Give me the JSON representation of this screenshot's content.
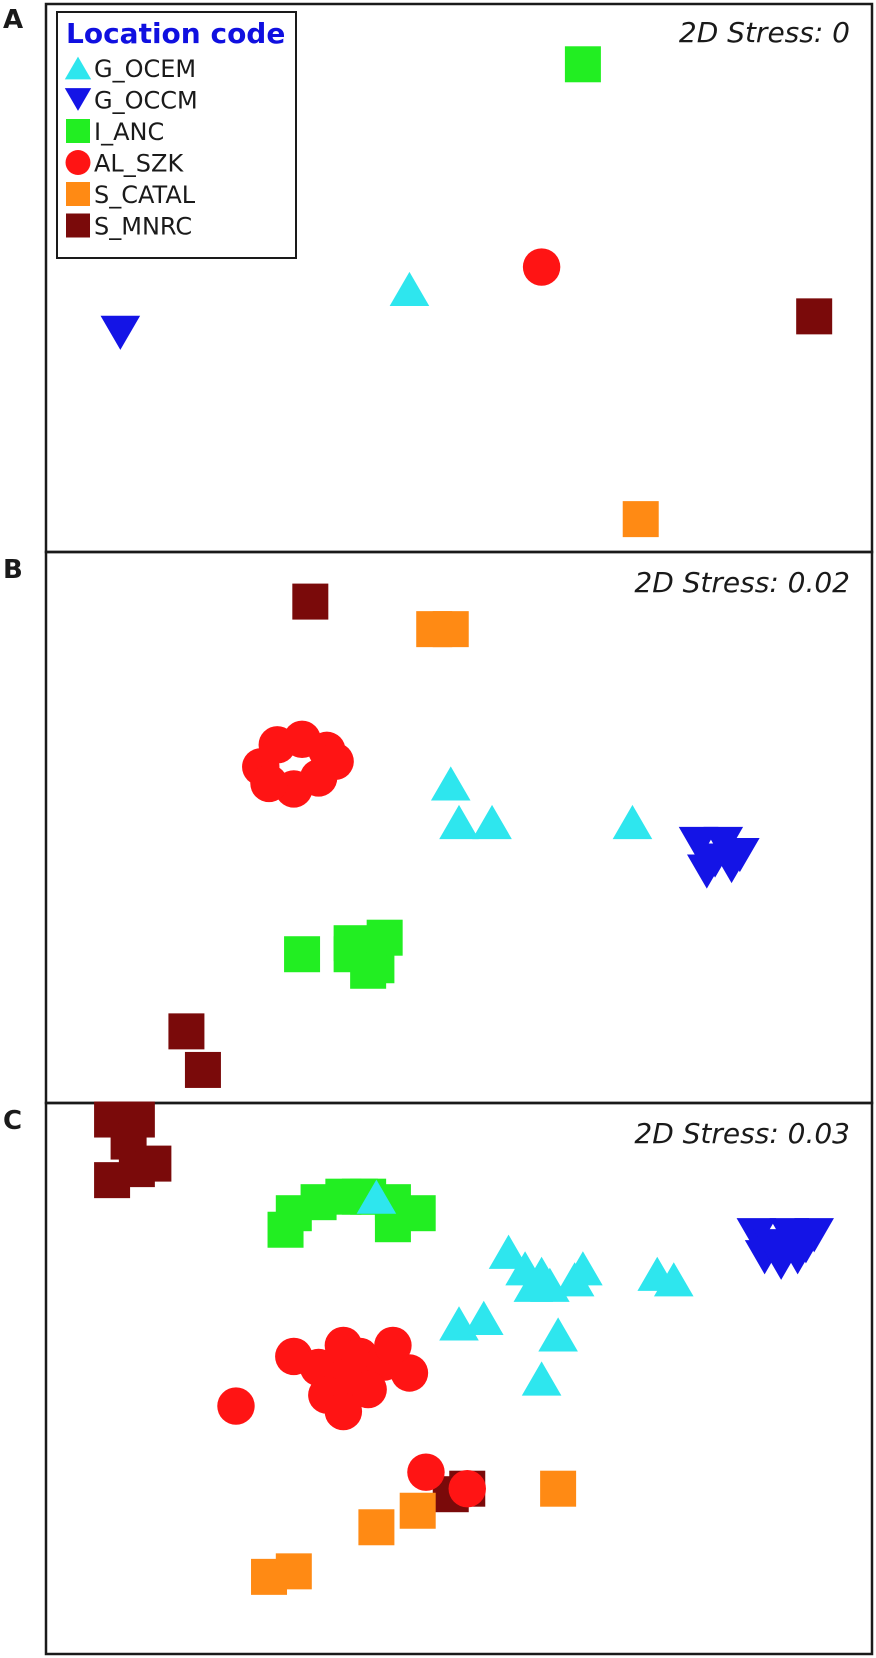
{
  "chart_data": {
    "type": "scatter",
    "legend": {
      "title": "Location code",
      "placement": "top-left",
      "entries": [
        {
          "label": "G_OCEM",
          "shape": "triangle-up",
          "color": "#2ee6ee"
        },
        {
          "label": "G_OCCM",
          "shape": "triangle-down",
          "color": "#1414e6"
        },
        {
          "label": "I_ANC",
          "shape": "square",
          "color": "#22ee22"
        },
        {
          "label": "AL_SZK",
          "shape": "circle",
          "color": "#ff1414"
        },
        {
          "label": "S_CATAL",
          "shape": "square",
          "color": "#ff8a14"
        },
        {
          "label": "S_MNRC",
          "shape": "square",
          "color": "#7a0a0a"
        }
      ]
    },
    "panels": [
      {
        "letter": "A",
        "stress": "2D Stress: 0",
        "points": {
          "G_OCEM": [
            [
              0.44,
              0.48
            ]
          ],
          "G_OCCM": [
            [
              0.09,
              0.4
            ]
          ],
          "I_ANC": [
            [
              0.65,
              0.89
            ]
          ],
          "AL_SZK": [
            [
              0.6,
              0.52
            ]
          ],
          "S_CATAL": [
            [
              0.72,
              0.06
            ]
          ],
          "S_MNRC": [
            [
              0.93,
              0.43
            ]
          ]
        }
      },
      {
        "letter": "B",
        "stress": "2D Stress: 0.02",
        "points": {
          "G_OCEM": [
            [
              0.49,
              0.58
            ],
            [
              0.5,
              0.51
            ],
            [
              0.54,
              0.51
            ],
            [
              0.71,
              0.51
            ]
          ],
          "G_OCCM": [
            [
              0.79,
              0.47
            ],
            [
              0.82,
              0.47
            ],
            [
              0.84,
              0.45
            ],
            [
              0.81,
              0.44
            ],
            [
              0.83,
              0.43
            ],
            [
              0.8,
              0.42
            ]
          ],
          "I_ANC": [
            [
              0.31,
              0.27
            ],
            [
              0.37,
              0.27
            ],
            [
              0.4,
              0.25
            ],
            [
              0.37,
              0.29
            ],
            [
              0.41,
              0.3
            ],
            [
              0.39,
              0.24
            ]
          ],
          "AL_SZK": [
            [
              0.26,
              0.61
            ],
            [
              0.28,
              0.65
            ],
            [
              0.31,
              0.66
            ],
            [
              0.34,
              0.64
            ],
            [
              0.35,
              0.62
            ],
            [
              0.33,
              0.59
            ],
            [
              0.3,
              0.57
            ],
            [
              0.27,
              0.58
            ]
          ],
          "S_CATAL": [
            [
              0.47,
              0.86
            ],
            [
              0.49,
              0.86
            ]
          ],
          "S_MNRC": [
            [
              0.32,
              0.91
            ],
            [
              0.17,
              0.13
            ],
            [
              0.19,
              0.06
            ]
          ]
        }
      },
      {
        "letter": "C",
        "stress": "2D Stress: 0.03",
        "points": {
          "G_OCEM": [
            [
              0.4,
              0.83
            ],
            [
              0.56,
              0.73
            ],
            [
              0.58,
              0.7
            ],
            [
              0.6,
              0.69
            ],
            [
              0.65,
              0.7
            ],
            [
              0.64,
              0.68
            ],
            [
              0.74,
              0.69
            ],
            [
              0.76,
              0.68
            ],
            [
              0.5,
              0.6
            ],
            [
              0.53,
              0.61
            ],
            [
              0.62,
              0.58
            ],
            [
              0.6,
              0.5
            ],
            [
              0.59,
              0.67
            ],
            [
              0.61,
              0.67
            ]
          ],
          "G_OCCM": [
            [
              0.86,
              0.76
            ],
            [
              0.88,
              0.74
            ],
            [
              0.9,
              0.76
            ],
            [
              0.92,
              0.74
            ],
            [
              0.87,
              0.72
            ],
            [
              0.89,
              0.71
            ],
            [
              0.91,
              0.72
            ],
            [
              0.93,
              0.76
            ]
          ],
          "I_ANC": [
            [
              0.3,
              0.8
            ],
            [
              0.33,
              0.82
            ],
            [
              0.36,
              0.83
            ],
            [
              0.39,
              0.83
            ],
            [
              0.42,
              0.82
            ],
            [
              0.45,
              0.8
            ],
            [
              0.29,
              0.77
            ],
            [
              0.42,
              0.78
            ],
            [
              0.38,
              0.83
            ]
          ],
          "AL_SZK": [
            [
              0.3,
              0.54
            ],
            [
              0.33,
              0.52
            ],
            [
              0.36,
              0.56
            ],
            [
              0.38,
              0.54
            ],
            [
              0.41,
              0.53
            ],
            [
              0.44,
              0.51
            ],
            [
              0.39,
              0.48
            ],
            [
              0.36,
              0.5
            ],
            [
              0.34,
              0.47
            ],
            [
              0.42,
              0.56
            ],
            [
              0.23,
              0.45
            ],
            [
              0.36,
              0.44
            ],
            [
              0.46,
              0.33
            ],
            [
              0.51,
              0.3
            ]
          ],
          "S_CATAL": [
            [
              0.4,
              0.23
            ],
            [
              0.45,
              0.26
            ],
            [
              0.27,
              0.14
            ],
            [
              0.3,
              0.15
            ],
            [
              0.62,
              0.3
            ]
          ],
          "S_MNRC": [
            [
              0.08,
              0.97
            ],
            [
              0.11,
              0.97
            ],
            [
              0.1,
              0.93
            ],
            [
              0.08,
              0.86
            ],
            [
              0.11,
              0.88
            ],
            [
              0.13,
              0.89
            ],
            [
              0.49,
              0.29
            ],
            [
              0.51,
              0.3
            ]
          ]
        }
      }
    ]
  }
}
